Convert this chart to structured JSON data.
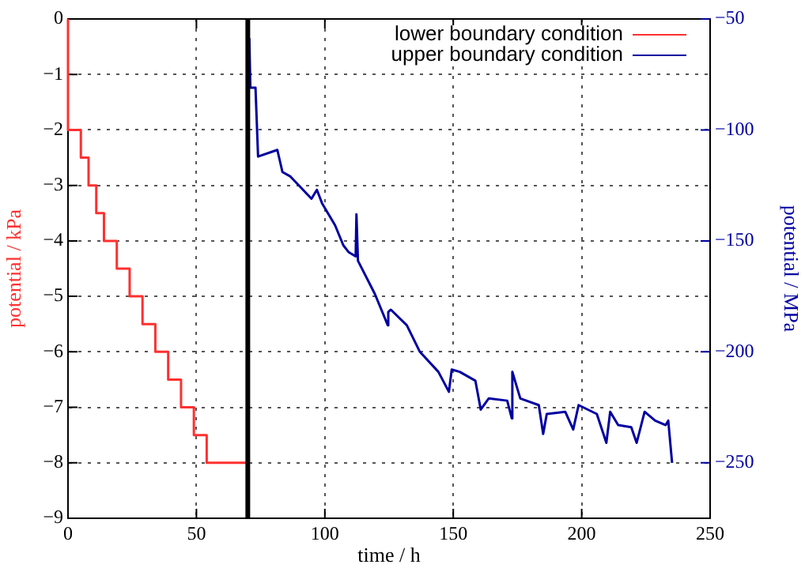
{
  "chart_data": {
    "type": "line",
    "xlabel": "time / h",
    "ylabel": "potential / kPa",
    "y2label": "potential / MPa",
    "xlim": [
      0,
      250
    ],
    "xticks": [
      0,
      50,
      100,
      150,
      200,
      250
    ],
    "ylim": [
      -9,
      0
    ],
    "yticks": [
      -9,
      -8,
      -7,
      -6,
      -5,
      -4,
      -3,
      -2,
      -1,
      0
    ],
    "y2lim": [
      -275,
      -50
    ],
    "y2ticks": [
      -250,
      -200,
      -150,
      -100,
      -50
    ],
    "grid": true,
    "legend": "top right",
    "marker": "none",
    "line_style": "solid",
    "ref_lines": [
      {
        "axis": "x",
        "value": 70,
        "color": "#000000"
      }
    ],
    "series": [
      {
        "name": "lower boundary condition",
        "type": "step",
        "color": "#ff3030",
        "x": [
          0,
          0,
          5,
          8,
          11,
          14,
          19,
          24,
          29,
          34,
          39,
          44,
          49,
          54,
          70
        ],
        "values": [
          0,
          -2,
          -2.5,
          -3,
          -3.5,
          -4,
          -4.5,
          -5,
          -5.5,
          -6,
          -6.5,
          -7,
          -7.5,
          -8,
          -8
        ]
      },
      {
        "name": "upper boundary condition",
        "type": "line",
        "axis": "y2",
        "color": "#0000a0",
        "x": [
          70.5,
          70.6,
          71,
          73,
          74,
          81.5,
          82.5,
          83.5,
          86.6,
          94.8,
          96.9,
          98.9,
          104,
          107.2,
          109.2,
          112,
          112.3,
          112.9,
          119.5,
          124.5,
          124.7,
          125.7,
          131.9,
          137,
          144.2,
          148.3,
          149.4,
          152.5,
          158.6,
          160.7,
          163.8,
          171,
          172.8,
          173,
          176.1,
          183.3,
          185,
          186.4,
          193.6,
          196.7,
          198.8,
          205.9,
          209.6,
          211.1,
          214.2,
          219.3,
          221.4,
          224.5,
          228.6,
          232.7,
          233.7,
          235.2
        ],
        "values": [
          -75,
          -59,
          -81,
          -81,
          -112,
          -109,
          -114,
          -119,
          -121,
          -131,
          -127,
          -133,
          -143,
          -152,
          -155,
          -157,
          -138,
          -159,
          -174,
          -188,
          -182,
          -181,
          -188,
          -200,
          -209,
          -218,
          -208,
          -209,
          -213,
          -226,
          -221,
          -222,
          -230,
          -209,
          -221,
          -224,
          -237,
          -228,
          -227,
          -235,
          -224,
          -228,
          -241,
          -227,
          -233,
          -234,
          -241,
          -227,
          -231,
          -233,
          -231,
          -250
        ]
      }
    ]
  }
}
